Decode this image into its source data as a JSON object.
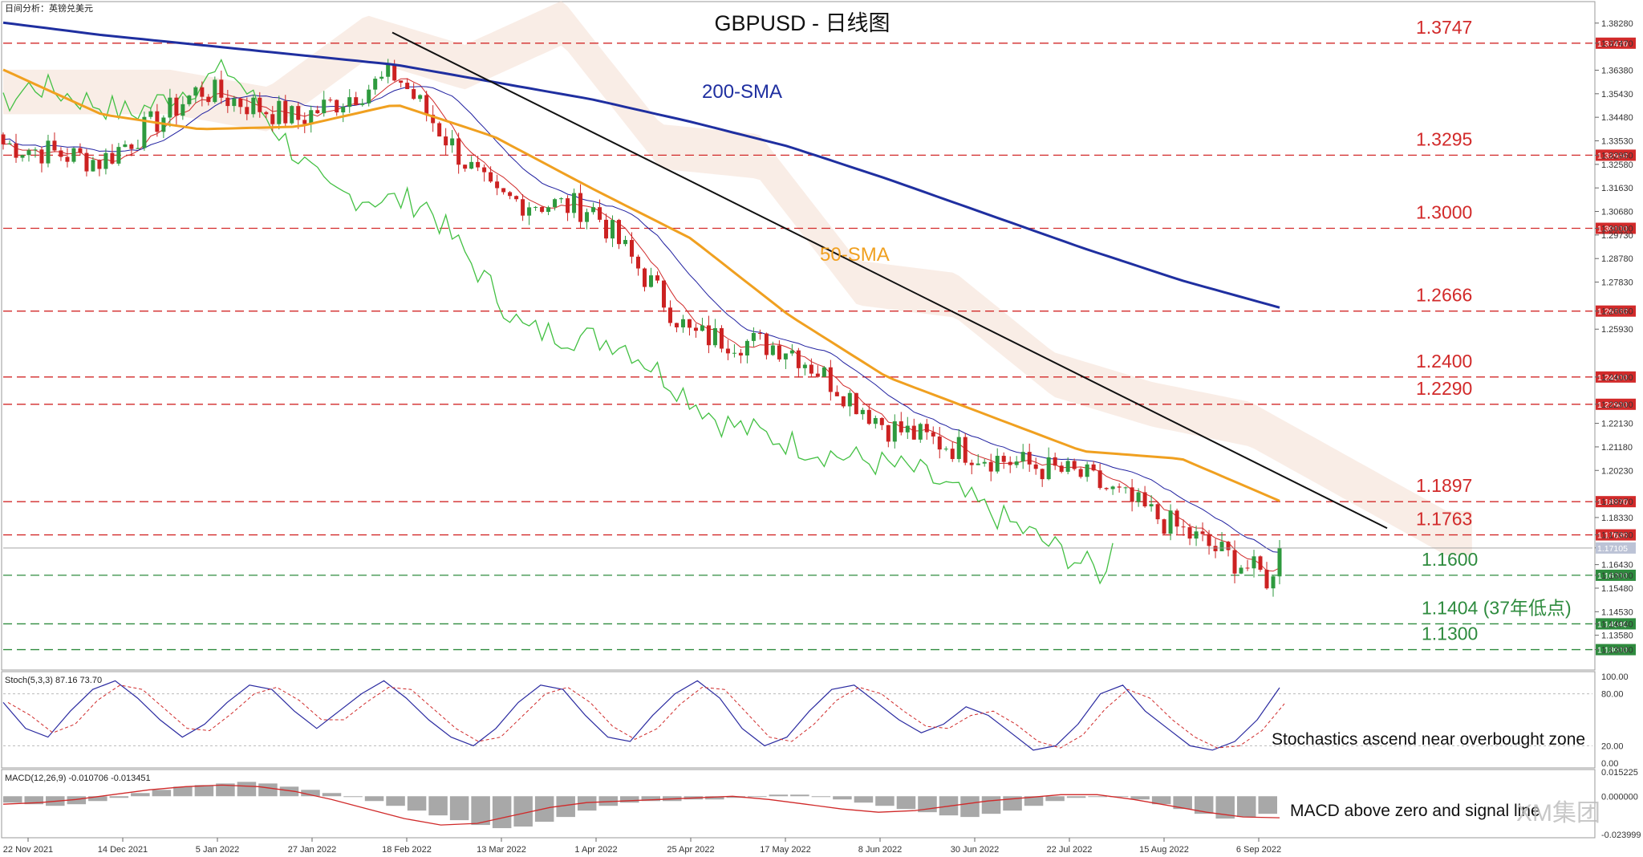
{
  "header": {
    "corner_text": "日间分析：英镑兑美元",
    "title": "GBPUSD - 日线图"
  },
  "price_axis": {
    "ticks": [
      "1.38280",
      "1.37470",
      "1.36380",
      "1.35430",
      "1.34480",
      "1.33530",
      "1.32950",
      "1.32580",
      "1.31630",
      "1.30680",
      "1.30000",
      "1.29730",
      "1.28780",
      "1.27830",
      "1.26660",
      "1.25930",
      "1.24000",
      "1.22900",
      "1.22130",
      "1.21180",
      "1.20230",
      "1.18970",
      "1.18330",
      "1.17630",
      "1.17105",
      "1.16430",
      "1.16000",
      "1.15480",
      "1.14530",
      "1.14040",
      "1.13580",
      "1.13000"
    ],
    "current_price_label": "1.17105"
  },
  "levels": [
    {
      "value": 1.3747,
      "label": "1.3747",
      "tag": "1.37470",
      "type": "resistance"
    },
    {
      "value": 1.3295,
      "label": "1.3295",
      "tag": "1.32950",
      "type": "resistance"
    },
    {
      "value": 1.3,
      "label": "1.3000",
      "tag": "1.30000",
      "type": "resistance"
    },
    {
      "value": 1.2666,
      "label": "1.2666",
      "tag": "1.26660",
      "type": "resistance"
    },
    {
      "value": 1.24,
      "label": "1.2400",
      "tag": "1.24000",
      "type": "resistance"
    },
    {
      "value": 1.229,
      "label": "1.2290",
      "tag": "1.22900",
      "type": "resistance"
    },
    {
      "value": 1.1897,
      "label": "1.1897",
      "tag": "1.18970",
      "type": "resistance"
    },
    {
      "value": 1.1763,
      "label": "1.1763",
      "tag": "1.17630",
      "type": "resistance"
    },
    {
      "value": 1.16,
      "label": "1.1600",
      "tag": "1.16000",
      "type": "support"
    },
    {
      "value": 1.1404,
      "label": "1.1404 (37年低点)",
      "tag": "1.14040",
      "type": "support"
    },
    {
      "value": 1.13,
      "label": "1.1300",
      "tag": "1.13000",
      "type": "support"
    }
  ],
  "chart_data": {
    "type": "line",
    "title": "GBPUSD - 日线图",
    "x": [
      "22 Nov 2021",
      "14 Dec 2021",
      "5 Jan 2022",
      "27 Jan 2022",
      "18 Feb 2022",
      "13 Mar 2022",
      "1 Apr 2022",
      "25 Apr 2022",
      "17 May 2022",
      "8 Jun 2022",
      "30 Jun 2022",
      "22 Jul 2022",
      "15 Aug 2022",
      "6 Sep 2022"
    ],
    "ylim": [
      1.125,
      1.385
    ],
    "series": [
      {
        "name": "200-SMA",
        "color": "#1f2fa0",
        "values": [
          1.383,
          1.378,
          1.374,
          1.37,
          1.366,
          1.359,
          1.352,
          1.343,
          1.333,
          1.32,
          1.306,
          1.292,
          1.279,
          1.268
        ]
      },
      {
        "name": "50-SMA",
        "color": "#f0a020",
        "values": [
          1.364,
          1.346,
          1.34,
          1.341,
          1.35,
          1.337,
          1.316,
          1.296,
          1.265,
          1.24,
          1.225,
          1.21,
          1.207,
          1.19
        ]
      }
    ],
    "price_close": [
      1.334,
      1.327,
      1.356,
      1.344,
      1.362,
      1.312,
      1.308,
      1.257,
      1.252,
      1.22,
      1.208,
      1.2,
      1.178,
      1.156
    ],
    "last_close": 1.171,
    "trendline": {
      "from": {
        "date": "27 Jan 2022",
        "price": 1.379
      },
      "to": {
        "date": "6 Sep 2022",
        "price": 1.179
      }
    },
    "grid": false
  },
  "annotations": {
    "sma200": "200-SMA",
    "sma50": "50-SMA",
    "stoch_note": "Stochastics ascend near overbought zone",
    "macd_note": "MACD above zero and signal line"
  },
  "stoch": {
    "label": "Stoch(5,3,3) 87.16 73.70",
    "ticks": [
      "100.00",
      "80.00",
      "20.00",
      "0.00"
    ],
    "k_values": [
      70,
      40,
      30,
      60,
      85,
      95,
      75,
      50,
      30,
      45,
      70,
      90,
      85,
      60,
      40,
      60,
      80,
      95,
      75,
      50,
      30,
      20,
      40,
      70,
      90,
      85,
      55,
      30,
      25,
      55,
      80,
      95,
      75,
      40,
      20,
      30,
      60,
      85,
      90,
      70,
      50,
      35,
      45,
      65,
      55,
      35,
      15,
      20,
      45,
      80,
      90,
      60,
      40,
      20,
      15,
      25,
      50,
      87
    ]
  },
  "macd": {
    "label": "MACD(12,26,9) -0.010706 -0.013451",
    "ticks": [
      "0.015225",
      "0.000000",
      "-0.023999"
    ],
    "hist": [
      -0.004,
      -0.005,
      -0.006,
      -0.005,
      -0.003,
      -0.001,
      0.002,
      0.004,
      0.006,
      0.007,
      0.008,
      0.009,
      0.008,
      0.006,
      0.004,
      0.002,
      0.0,
      -0.003,
      -0.006,
      -0.009,
      -0.012,
      -0.015,
      -0.018,
      -0.02,
      -0.019,
      -0.016,
      -0.013,
      -0.009,
      -0.006,
      -0.004,
      -0.003,
      -0.003,
      -0.002,
      -0.002,
      -0.001,
      0.0,
      0.001,
      0.001,
      0.0,
      -0.002,
      -0.004,
      -0.006,
      -0.008,
      -0.01,
      -0.012,
      -0.013,
      -0.011,
      -0.009,
      -0.006,
      -0.003,
      -0.001,
      0.0,
      0.0,
      -0.002,
      -0.005,
      -0.008,
      -0.011,
      -0.014,
      -0.013,
      -0.011
    ],
    "signal": [
      -0.005,
      -0.004,
      -0.002,
      0.001,
      0.004,
      0.006,
      0.007,
      0.006,
      0.003,
      -0.002,
      -0.008,
      -0.014,
      -0.018,
      -0.017,
      -0.012,
      -0.007,
      -0.004,
      -0.003,
      -0.002,
      -0.001,
      0.0,
      -0.002,
      -0.005,
      -0.008,
      -0.01,
      -0.009,
      -0.006,
      -0.003,
      -0.001,
      0.001,
      0.001,
      -0.002,
      -0.006,
      -0.01,
      -0.013,
      -0.0135
    ]
  },
  "watermark": "XM集团"
}
